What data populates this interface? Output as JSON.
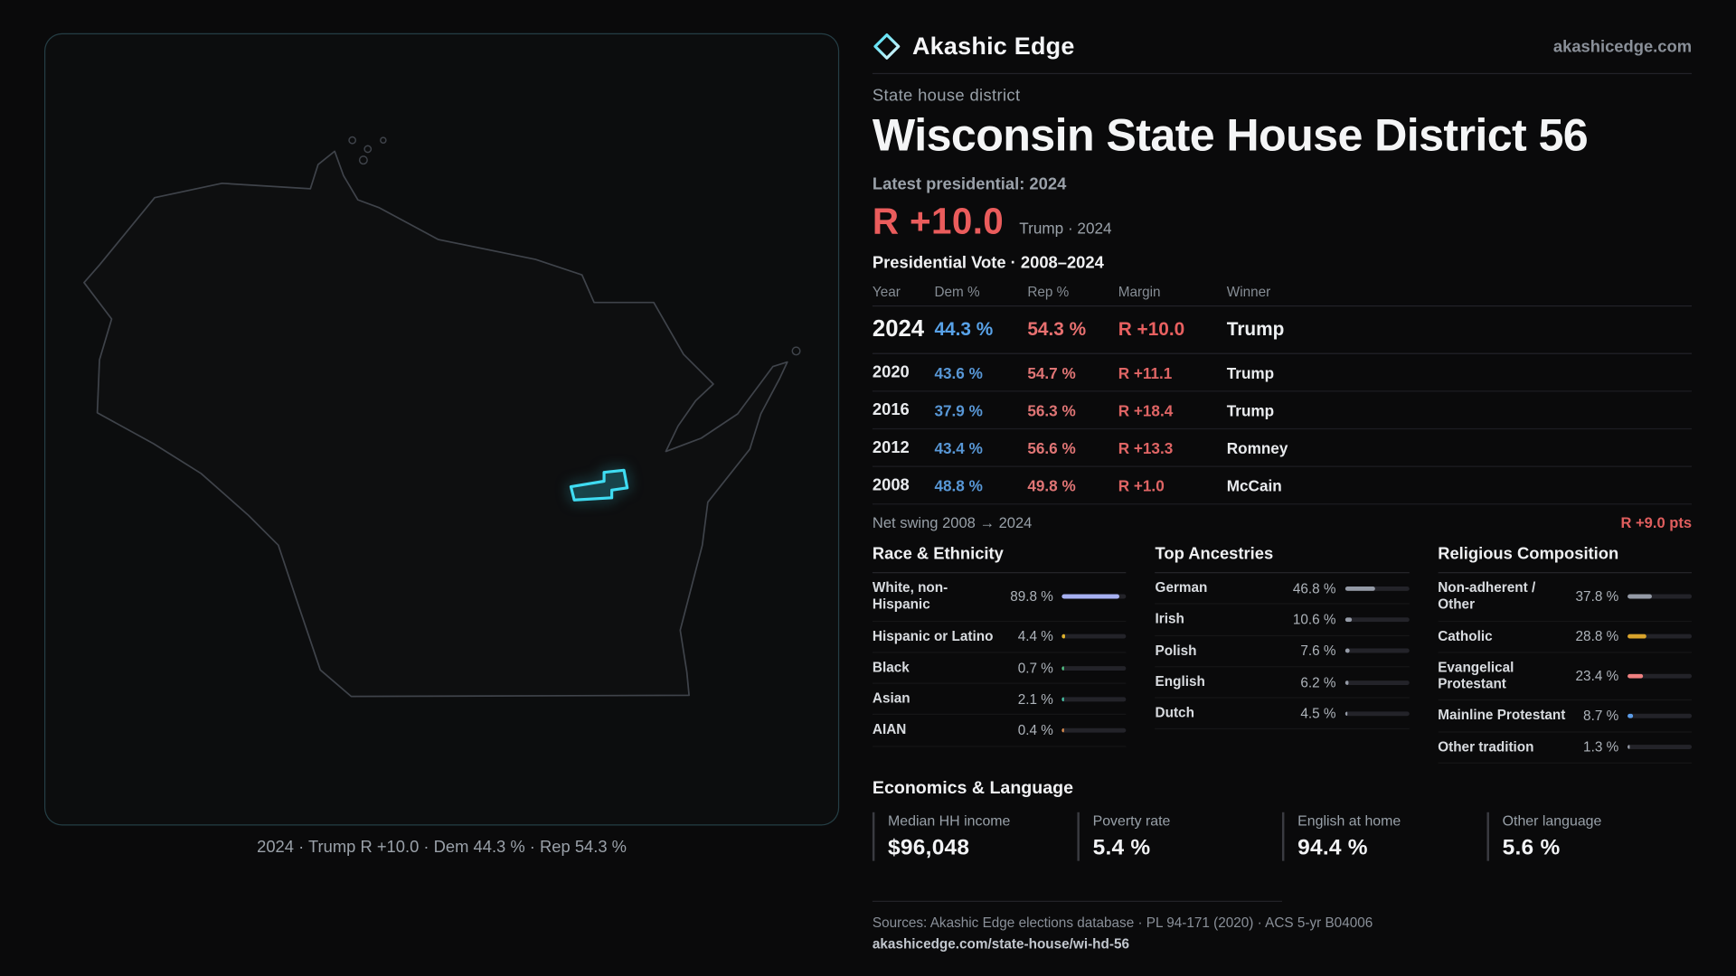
{
  "brand": {
    "name": "Akashic Edge",
    "site": "akashicedge.com"
  },
  "map": {
    "caption": "2024 · Trump R +10.0 · Dem 44.3 % · Rep 54.3 %"
  },
  "page": {
    "kicker": "State house district",
    "title": "Wisconsin State House District 56",
    "latest_label": "Latest presidential: 2024",
    "headline_margin": "R +10.0",
    "headline_sub": "Trump · 2024"
  },
  "vote_table": {
    "title": "Presidential Vote · 2008–2024",
    "columns": [
      "Year",
      "Dem %",
      "Rep %",
      "Margin",
      "Winner"
    ],
    "rows": [
      {
        "year": "2024",
        "dem": "44.3 %",
        "rep": "54.3 %",
        "margin": "R +10.0",
        "winner": "Trump"
      },
      {
        "year": "2020",
        "dem": "43.6 %",
        "rep": "54.7 %",
        "margin": "R +11.1",
        "winner": "Trump"
      },
      {
        "year": "2016",
        "dem": "37.9 %",
        "rep": "56.3 %",
        "margin": "R +18.4",
        "winner": "Trump"
      },
      {
        "year": "2012",
        "dem": "43.4 %",
        "rep": "56.6 %",
        "margin": "R +13.3",
        "winner": "Romney"
      },
      {
        "year": "2008",
        "dem": "48.8 %",
        "rep": "49.8 %",
        "margin": "R +1.0",
        "winner": "McCain"
      }
    ]
  },
  "net_swing": {
    "label": "Net swing 2008 → 2024",
    "value": "R +9.0 pts"
  },
  "demographics": {
    "race": {
      "title": "Race & Ethnicity",
      "rows": [
        {
          "label": "White, non-Hispanic",
          "value": "89.8 %",
          "pct": 89.8,
          "color": "#a7b0f2"
        },
        {
          "label": "Hispanic or Latino",
          "value": "4.4 %",
          "pct": 4.4,
          "color": "#e0b32e"
        },
        {
          "label": "Black",
          "value": "0.7 %",
          "pct": 0.7,
          "color": "#56c98a"
        },
        {
          "label": "Asian",
          "value": "2.1 %",
          "pct": 2.1,
          "color": "#49c6a8"
        },
        {
          "label": "AIAN",
          "value": "0.4 %",
          "pct": 0.4,
          "color": "#e09050"
        }
      ]
    },
    "ancestry": {
      "title": "Top Ancestries",
      "rows": [
        {
          "label": "German",
          "value": "46.8 %",
          "pct": 46.8,
          "color": "#949aa6"
        },
        {
          "label": "Irish",
          "value": "10.6 %",
          "pct": 10.6,
          "color": "#949aa6"
        },
        {
          "label": "Polish",
          "value": "7.6 %",
          "pct": 7.6,
          "color": "#949aa6"
        },
        {
          "label": "English",
          "value": "6.2 %",
          "pct": 6.2,
          "color": "#949aa6"
        },
        {
          "label": "Dutch",
          "value": "4.5 %",
          "pct": 4.5,
          "color": "#949aa6"
        }
      ]
    },
    "religion": {
      "title": "Religious Composition",
      "rows": [
        {
          "label": "Non-adherent / Other",
          "value": "37.8 %",
          "pct": 37.8,
          "color": "#949aa6"
        },
        {
          "label": "Catholic",
          "value": "28.8 %",
          "pct": 28.8,
          "color": "#d9a42c"
        },
        {
          "label": "Evangelical Protestant",
          "value": "23.4 %",
          "pct": 23.4,
          "color": "#ef8080"
        },
        {
          "label": "Mainline Protestant",
          "value": "8.7 %",
          "pct": 8.7,
          "color": "#5b9ce8"
        },
        {
          "label": "Other tradition",
          "value": "1.3 %",
          "pct": 1.3,
          "color": "#949aa6"
        }
      ]
    }
  },
  "economics": {
    "title": "Economics & Language",
    "stats": [
      {
        "label": "Median HH income",
        "value": "$96,048"
      },
      {
        "label": "Poverty rate",
        "value": "5.4 %"
      },
      {
        "label": "English at home",
        "value": "94.4 %"
      },
      {
        "label": "Other language",
        "value": "5.6 %"
      }
    ]
  },
  "footer": {
    "sources": "Sources: Akashic Edge elections database · PL 94-171 (2020) · ACS 5-yr B04006",
    "permalink": "akashicedge.com/state-house/wi-hd-56"
  },
  "colors": {
    "accent": "#3fdcf2",
    "dem": "#58a2e8",
    "rep": "#e86060",
    "background": "#0a0a0b"
  }
}
